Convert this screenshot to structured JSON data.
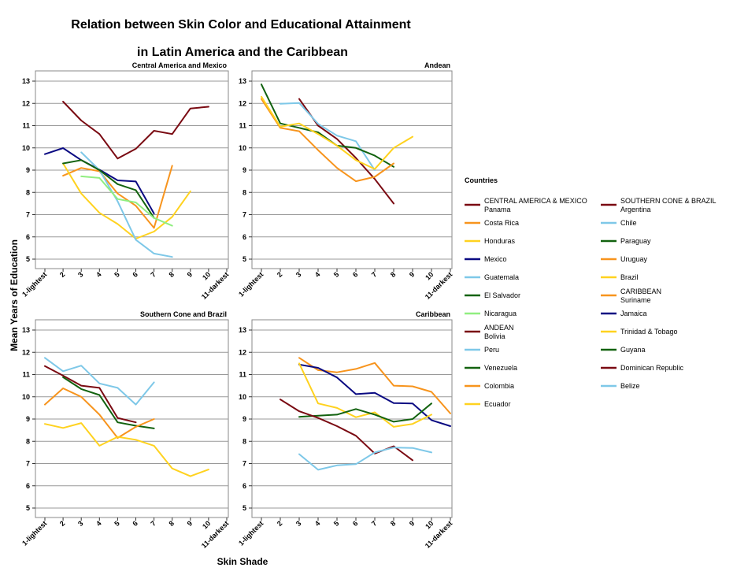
{
  "chart_data": {
    "type": "line",
    "title": [
      "Relation between Skin Color and Educational Attainment",
      "in Latin America and the Caribbean"
    ],
    "xlabel": "Skin Shade",
    "ylabel": "Mean Years of Education",
    "x_ticks": [
      "1-lightest",
      "2",
      "3",
      "4",
      "5",
      "6",
      "7",
      "8",
      "9",
      "10",
      "11-darkest"
    ],
    "ylim": [
      5,
      13
    ],
    "y_ticks": [
      "5",
      "6",
      "7",
      "8",
      "9",
      "10",
      "11",
      "12",
      "13"
    ],
    "grid": "horizontal",
    "legend_title": "Countries",
    "legend_placement": "right",
    "legend": [
      {
        "header": "CENTRAL AMERICA & MEXICO",
        "label": "Panama",
        "color": "#7a0a12"
      },
      {
        "label": "Costa Rica",
        "color": "#f7941d"
      },
      {
        "label": "Honduras",
        "color": "#ffd21f"
      },
      {
        "label": "Mexico",
        "color": "#0a0a82"
      },
      {
        "label": "Guatemala",
        "color": "#7ec8e8"
      },
      {
        "label": "El Salvador",
        "color": "#12620f"
      },
      {
        "label": "Nicaragua",
        "color": "#90ee80"
      },
      {
        "header": "ANDEAN",
        "label": "Bolivia",
        "color": "#7a0a12"
      },
      {
        "label": "Peru",
        "color": "#7ec8e8"
      },
      {
        "label": "Venezuela",
        "color": "#12620f"
      },
      {
        "label": "Colombia",
        "color": "#f7941d"
      },
      {
        "label": "Ecuador",
        "color": "#ffd21f"
      },
      {
        "header": "SOUTHERN CONE & BRAZIL",
        "label": "Argentina",
        "color": "#7a0a12"
      },
      {
        "label": "Chile",
        "color": "#7ec8e8"
      },
      {
        "label": "Paraguay",
        "color": "#12620f"
      },
      {
        "label": "Uruguay",
        "color": "#f7941d"
      },
      {
        "label": "Brazil",
        "color": "#ffd21f"
      },
      {
        "header": "CARIBBEAN",
        "label": "Suriname",
        "color": "#f7941d"
      },
      {
        "label": "Jamaica",
        "color": "#0a0a82"
      },
      {
        "label": "Trinidad & Tobago",
        "color": "#ffd21f"
      },
      {
        "label": "Guyana",
        "color": "#12620f"
      },
      {
        "label": "Dominican Republic",
        "color": "#7a0a12"
      },
      {
        "label": "Belize",
        "color": "#7ec8e8"
      }
    ],
    "panels": [
      {
        "title": "Central America and Mexico",
        "series": [
          {
            "name": "Panama",
            "color": "#7a0a12",
            "x": [
              2,
              3,
              4,
              5,
              6,
              7,
              8,
              9,
              10
            ],
            "y": [
              12.08,
              11.23,
              10.62,
              9.52,
              9.96,
              10.77,
              10.62,
              11.77,
              11.85
            ]
          },
          {
            "name": "Costa Rica",
            "color": "#f7941d",
            "x": [
              2,
              3,
              4,
              5,
              6,
              7,
              8
            ],
            "y": [
              8.75,
              9.1,
              8.95,
              7.95,
              7.4,
              6.4,
              9.2
            ]
          },
          {
            "name": "Honduras",
            "color": "#ffd21f",
            "x": [
              2,
              3,
              4,
              5,
              6,
              7,
              8,
              9
            ],
            "y": [
              9.3,
              7.95,
              7.08,
              6.58,
              5.92,
              6.24,
              6.9,
              8.05
            ]
          },
          {
            "name": "Mexico",
            "color": "#0a0a82",
            "x": [
              1,
              2,
              3,
              4,
              5,
              6,
              7
            ],
            "y": [
              9.72,
              9.99,
              9.45,
              9.02,
              8.54,
              8.49,
              7.05
            ]
          },
          {
            "name": "Guatemala",
            "color": "#7ec8e8",
            "x": [
              3,
              4,
              5,
              6,
              7,
              8
            ],
            "y": [
              9.8,
              9.0,
              7.6,
              5.87,
              5.25,
              5.1
            ]
          },
          {
            "name": "El Salvador",
            "color": "#12620f",
            "x": [
              2,
              3,
              4,
              5,
              6,
              7
            ],
            "y": [
              9.3,
              9.45,
              9.0,
              8.37,
              8.1,
              6.85
            ]
          },
          {
            "name": "Nicaragua",
            "color": "#90ee80",
            "x": [
              3,
              4,
              5,
              6,
              7,
              8
            ],
            "y": [
              8.72,
              8.65,
              7.7,
              7.55,
              6.85,
              6.5
            ]
          }
        ]
      },
      {
        "title": "Andean",
        "series": [
          {
            "name": "Bolivia",
            "color": "#7a0a12",
            "x": [
              3,
              4,
              5,
              6,
              7,
              8
            ],
            "y": [
              12.2,
              11.0,
              10.4,
              9.55,
              8.6,
              7.5
            ]
          },
          {
            "name": "Peru",
            "color": "#7ec8e8",
            "x": [
              2,
              3,
              4,
              5,
              6,
              7
            ],
            "y": [
              11.98,
              12.02,
              11.08,
              10.55,
              10.3,
              9.0
            ]
          },
          {
            "name": "Venezuela",
            "color": "#12620f",
            "x": [
              1,
              2,
              3,
              4,
              5,
              6,
              7,
              8
            ],
            "y": [
              12.85,
              11.1,
              10.9,
              10.7,
              10.1,
              10.0,
              9.65,
              9.15
            ]
          },
          {
            "name": "Colombia",
            "color": "#f7941d",
            "x": [
              1,
              2,
              3,
              4,
              5,
              6,
              7,
              8
            ],
            "y": [
              12.2,
              10.9,
              10.75,
              9.9,
              9.1,
              8.5,
              8.7,
              9.3
            ]
          },
          {
            "name": "Ecuador",
            "color": "#ffd21f",
            "x": [
              1,
              2,
              3,
              4,
              5,
              6,
              7,
              8,
              9
            ],
            "y": [
              12.3,
              10.95,
              11.1,
              10.62,
              10.1,
              9.45,
              9.05,
              10.0,
              10.5
            ]
          }
        ]
      },
      {
        "title": "Southern Cone and Brazil",
        "series": [
          {
            "name": "Argentina",
            "color": "#7a0a12",
            "x": [
              1,
              2,
              3,
              4,
              5,
              6
            ],
            "y": [
              11.38,
              10.95,
              10.5,
              10.4,
              9.05,
              8.85
            ]
          },
          {
            "name": "Chile",
            "color": "#7ec8e8",
            "x": [
              1,
              2,
              3,
              4,
              5,
              6,
              7
            ],
            "y": [
              11.75,
              11.15,
              11.4,
              10.6,
              10.4,
              9.65,
              10.65
            ]
          },
          {
            "name": "Paraguay",
            "color": "#12620f",
            "x": [
              2,
              3,
              4,
              5,
              6,
              7
            ],
            "y": [
              10.88,
              10.35,
              10.08,
              8.85,
              8.7,
              8.58
            ]
          },
          {
            "name": "Uruguay",
            "color": "#f7941d",
            "x": [
              1,
              2,
              3,
              4,
              5,
              6,
              7
            ],
            "y": [
              9.65,
              10.38,
              10.0,
              9.2,
              8.15,
              8.65,
              9.0
            ]
          },
          {
            "name": "Brazil",
            "color": "#ffd21f",
            "x": [
              1,
              2,
              3,
              4,
              5,
              6,
              7,
              8,
              9,
              10
            ],
            "y": [
              8.78,
              8.6,
              8.82,
              7.8,
              8.2,
              8.07,
              7.8,
              6.78,
              6.43,
              6.73
            ]
          }
        ]
      },
      {
        "title": "Caribbean",
        "series": [
          {
            "name": "Suriname",
            "color": "#f7941d",
            "x": [
              3,
              4,
              5,
              6,
              7,
              8,
              9,
              10,
              11
            ],
            "y": [
              11.75,
              11.2,
              11.1,
              11.25,
              11.52,
              10.5,
              10.47,
              10.22,
              9.25
            ]
          },
          {
            "name": "Jamaica",
            "color": "#0a0a82",
            "x": [
              3,
              4,
              5,
              6,
              7,
              8,
              9,
              10,
              11
            ],
            "y": [
              11.45,
              11.3,
              10.87,
              10.12,
              10.18,
              9.72,
              9.7,
              8.95,
              8.68
            ]
          },
          {
            "name": "Trinidad & Tobago",
            "color": "#ffd21f",
            "x": [
              3,
              4,
              5,
              6,
              7,
              8,
              9,
              10
            ],
            "y": [
              11.5,
              9.7,
              9.5,
              9.08,
              9.3,
              8.65,
              8.78,
              9.2
            ]
          },
          {
            "name": "Guyana",
            "color": "#12620f",
            "x": [
              3,
              4,
              5,
              6,
              7,
              8,
              9,
              10
            ],
            "y": [
              9.1,
              9.15,
              9.2,
              9.45,
              9.2,
              8.88,
              9.0,
              9.7
            ]
          },
          {
            "name": "Dominican Republic",
            "color": "#7a0a12",
            "x": [
              2,
              3,
              4,
              5,
              6,
              7,
              8,
              9
            ],
            "y": [
              9.88,
              9.35,
              9.05,
              8.68,
              8.25,
              7.45,
              7.78,
              7.15
            ]
          },
          {
            "name": "Belize",
            "color": "#7ec8e8",
            "x": [
              3,
              4,
              5,
              6,
              7,
              8,
              9,
              10
            ],
            "y": [
              7.42,
              6.72,
              6.92,
              6.97,
              7.5,
              7.72,
              7.7,
              7.5
            ]
          }
        ]
      }
    ]
  }
}
